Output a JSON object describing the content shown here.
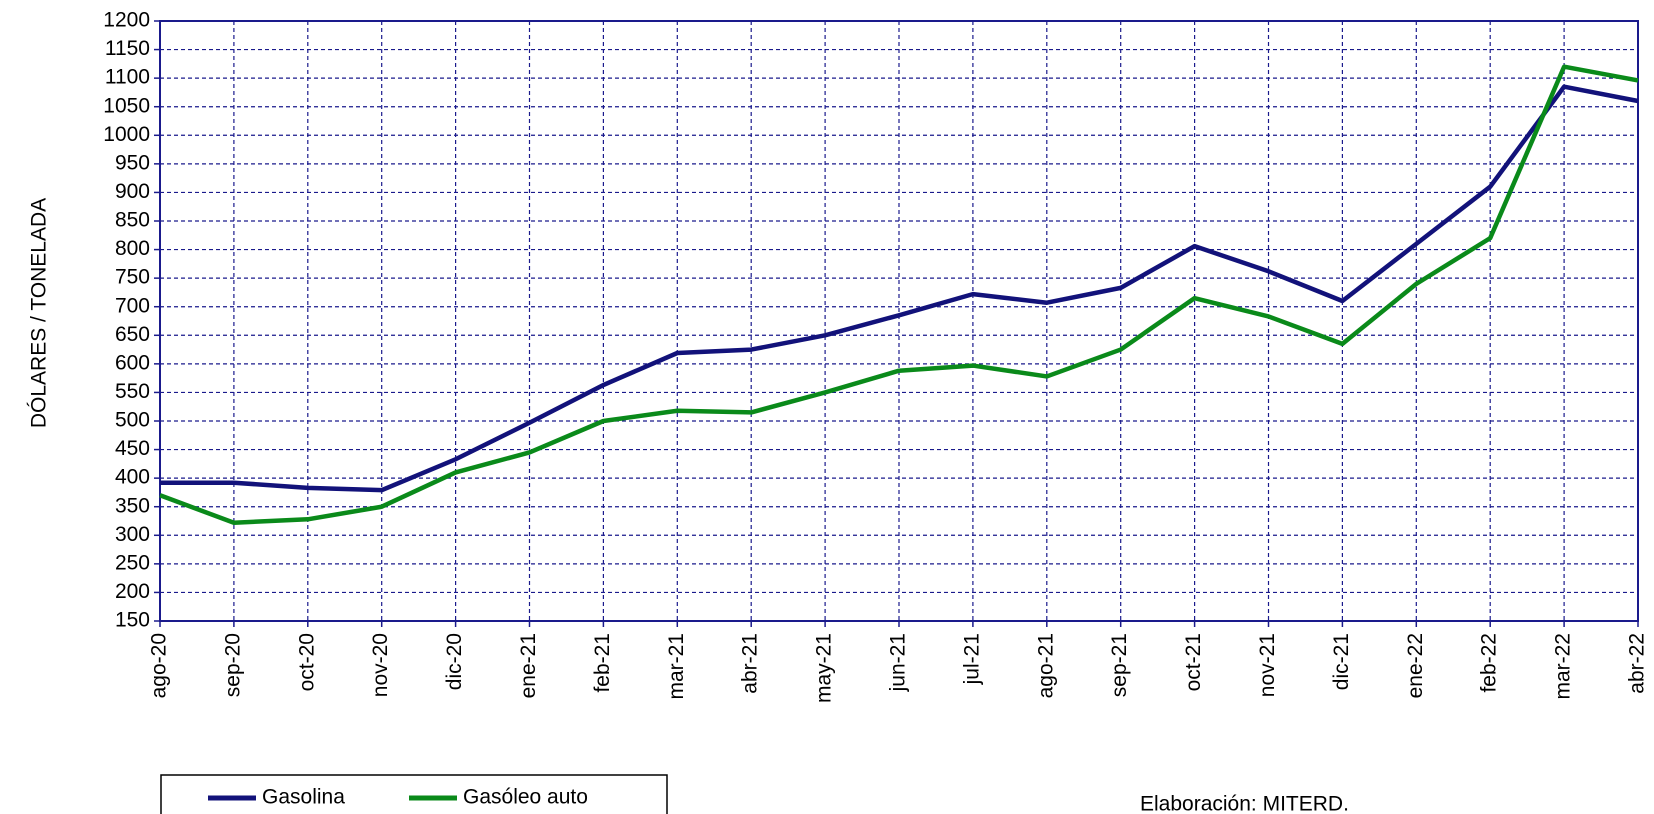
{
  "chart_data": {
    "type": "line",
    "ylabel": "DÓLARES / TONELADA",
    "source": "Elaboración:  MITERD.",
    "categories": [
      "ago-20",
      "sep-20",
      "oct-20",
      "nov-20",
      "dic-20",
      "ene-21",
      "feb-21",
      "mar-21",
      "abr-21",
      "may-21",
      "jun-21",
      "jul-21",
      "ago-21",
      "sep-21",
      "oct-21",
      "nov-21",
      "dic-21",
      "ene-22",
      "feb-22",
      "mar-22",
      "abr-22"
    ],
    "series": [
      {
        "name": "Gasolina",
        "color": "#12127a",
        "values": [
          392,
          392,
          383,
          379,
          433,
          497,
          563,
          619,
          625,
          650,
          685,
          722,
          707,
          733,
          806,
          762,
          710,
          810,
          910,
          1085,
          1060
        ]
      },
      {
        "name": "Gasóleo auto",
        "color": "#0a8a1a",
        "values": [
          370,
          322,
          328,
          350,
          410,
          445,
          500,
          518,
          515,
          550,
          588,
          597,
          578,
          625,
          715,
          683,
          635,
          740,
          820,
          1120,
          1096
        ]
      }
    ],
    "ylim": [
      150,
      1200
    ],
    "yticks": [
      150,
      200,
      250,
      300,
      350,
      400,
      450,
      500,
      550,
      600,
      650,
      700,
      750,
      800,
      850,
      900,
      950,
      1000,
      1050,
      1100,
      1150,
      1200
    ],
    "grid": true,
    "legend": "bottom-left"
  }
}
